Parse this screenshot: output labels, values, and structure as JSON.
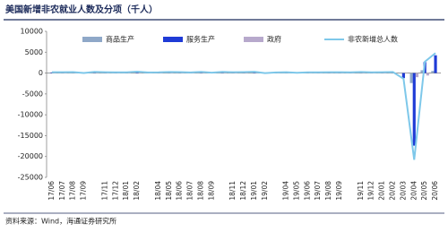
{
  "chart_data": {
    "type": "bar",
    "title": "美国新增非农就业人数及分项（千人）",
    "categories": [
      "17/06",
      "17/07",
      "17/08",
      "17/09",
      null,
      "17/11",
      "17/12",
      "18/01",
      "18/02",
      null,
      "18/04",
      "18/05",
      "18/06",
      "18/07",
      "18/08",
      "18/09",
      null,
      "18/11",
      "18/12",
      "19/01",
      "19/02",
      null,
      "19/04",
      "19/05",
      "19/06",
      "19/07",
      "19/08",
      "19/09",
      null,
      "19/11",
      "19/12",
      "20/01",
      "20/02",
      "20/03",
      "20/04",
      "20/05",
      "20/06"
    ],
    "series": [
      {
        "name": "商品生产",
        "color": "#8fa8c8",
        "type": "bar",
        "values": [
          40,
          30,
          45,
          -10,
          50,
          45,
          30,
          40,
          70,
          25,
          40,
          60,
          40,
          30,
          45,
          35,
          50,
          40,
          55,
          60,
          -20,
          20,
          40,
          10,
          30,
          25,
          30,
          10,
          -30,
          60,
          10,
          40,
          30,
          -101,
          -2393,
          675,
          502
        ]
      },
      {
        "name": "服务生产",
        "color": "#1f3bd6",
        "type": "bar",
        "values": [
          150,
          145,
          160,
          20,
          200,
          160,
          130,
          120,
          230,
          120,
          120,
          190,
          180,
          110,
          210,
          65,
          210,
          140,
          150,
          230,
          20,
          120,
          160,
          50,
          130,
          120,
          150,
          190,
          210,
          180,
          160,
          160,
          200,
          -1211,
          -17404,
          2635,
          4265
        ]
      },
      {
        "name": "政府",
        "color": "#b7a9cc",
        "type": "bar",
        "values": [
          20,
          15,
          16,
          8,
          21,
          11,
          15,
          16,
          24,
          10,
          15,
          20,
          15,
          17,
          27,
          8,
          17,
          16,
          22,
          22,
          1,
          7,
          16,
          2,
          18,
          21,
          27,
          8,
          5,
          21,
          14,
          14,
          21,
          -61,
          -990,
          -585,
          33
        ]
      },
      {
        "name": "非农新增总人数",
        "color": "#7ec8ea",
        "type": "line",
        "values": [
          210,
          190,
          221,
          18,
          271,
          216,
          175,
          176,
          324,
          155,
          175,
          270,
          235,
          157,
          282,
          108,
          277,
          196,
          227,
          312,
          1,
          147,
          216,
          62,
          178,
          166,
          207,
          208,
          185,
          261,
          184,
          214,
          251,
          -1373,
          -20787,
          2725,
          4800
        ]
      }
    ],
    "ylim": [
      -25000,
      10000
    ],
    "yticks": [
      -25000,
      -20000,
      -15000,
      -10000,
      -5000,
      0,
      5000,
      10000
    ],
    "source": "资料来源：Wind，海通证券研究所"
  }
}
